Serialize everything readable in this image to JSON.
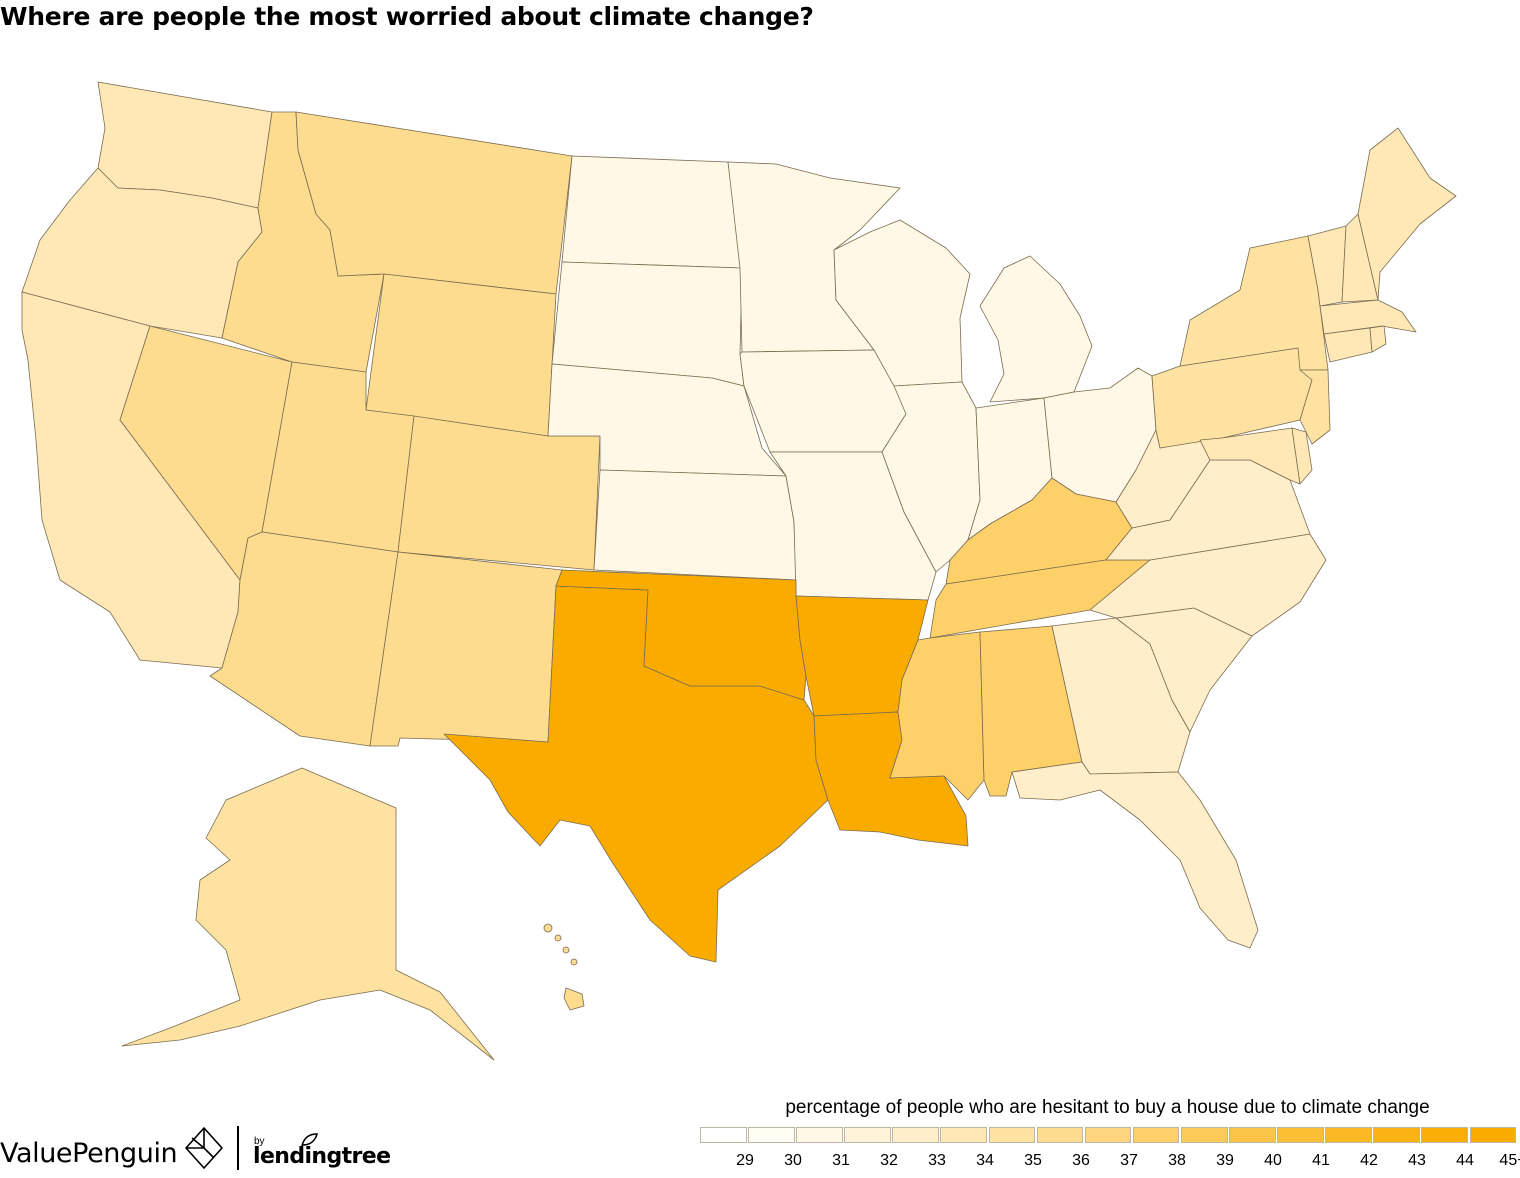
{
  "title": "Where are people the most worried about climate change?",
  "legend": {
    "title": "percentage of people who are hesitant to buy a house due to climate change",
    "colors": [
      "#ffffff",
      "#fffcf1",
      "#fff8e6",
      "#fff3d9",
      "#ffeec9",
      "#ffe8b6",
      "#fee2a1",
      "#fedc8f",
      "#fdd67e",
      "#fdd06a",
      "#fcca58",
      "#fcc446",
      "#fbbe35",
      "#fbb923",
      "#fab314",
      "#f9ad05",
      "#f9ab00"
    ],
    "ticks": [
      "29",
      "30",
      "31",
      "32",
      "33",
      "34",
      "35",
      "36",
      "37",
      "38",
      "39",
      "40",
      "41",
      "42",
      "43",
      "44",
      "45+"
    ]
  },
  "branding": {
    "name": "ValuePenguin",
    "by": "by",
    "partner": "lendingtree"
  },
  "map_data": {
    "metric": "percentage of people who are hesitant to buy a house due to climate change",
    "regions": [
      {
        "name": "WA",
        "value": 33
      },
      {
        "name": "OR",
        "value": 33
      },
      {
        "name": "CA",
        "value": 33
      },
      {
        "name": "ID",
        "value": 35
      },
      {
        "name": "NV",
        "value": 35
      },
      {
        "name": "MT",
        "value": 35
      },
      {
        "name": "WY",
        "value": 35
      },
      {
        "name": "UT",
        "value": 35
      },
      {
        "name": "CO",
        "value": 35
      },
      {
        "name": "AZ",
        "value": 35
      },
      {
        "name": "NM",
        "value": 35
      },
      {
        "name": "ND",
        "value": 30
      },
      {
        "name": "SD",
        "value": 30
      },
      {
        "name": "NE",
        "value": 30
      },
      {
        "name": "KS",
        "value": 30
      },
      {
        "name": "MN",
        "value": 30
      },
      {
        "name": "IA",
        "value": 30
      },
      {
        "name": "MO",
        "value": 30
      },
      {
        "name": "WI",
        "value": 30
      },
      {
        "name": "IL",
        "value": 30
      },
      {
        "name": "MI",
        "value": 30
      },
      {
        "name": "IN",
        "value": 30
      },
      {
        "name": "OH",
        "value": 30
      },
      {
        "name": "TX",
        "value": 45
      },
      {
        "name": "OK",
        "value": 45
      },
      {
        "name": "AR",
        "value": 45
      },
      {
        "name": "LA",
        "value": 45
      },
      {
        "name": "KY",
        "value": 37
      },
      {
        "name": "TN",
        "value": 37
      },
      {
        "name": "MS",
        "value": 37
      },
      {
        "name": "AL",
        "value": 37
      },
      {
        "name": "GA",
        "value": 32
      },
      {
        "name": "SC",
        "value": 32
      },
      {
        "name": "NC",
        "value": 32
      },
      {
        "name": "VA",
        "value": 32
      },
      {
        "name": "WV",
        "value": 32
      },
      {
        "name": "FL",
        "value": 32
      },
      {
        "name": "PA",
        "value": 34
      },
      {
        "name": "NY",
        "value": 34
      },
      {
        "name": "NJ",
        "value": 34
      },
      {
        "name": "MD",
        "value": 33
      },
      {
        "name": "DE",
        "value": 33
      },
      {
        "name": "VT",
        "value": 33
      },
      {
        "name": "NH",
        "value": 33
      },
      {
        "name": "ME",
        "value": 33
      },
      {
        "name": "MA",
        "value": 33
      },
      {
        "name": "CT",
        "value": 33
      },
      {
        "name": "RI",
        "value": 33
      },
      {
        "name": "AK",
        "value": 34
      },
      {
        "name": "HI",
        "value": 35
      }
    ]
  }
}
